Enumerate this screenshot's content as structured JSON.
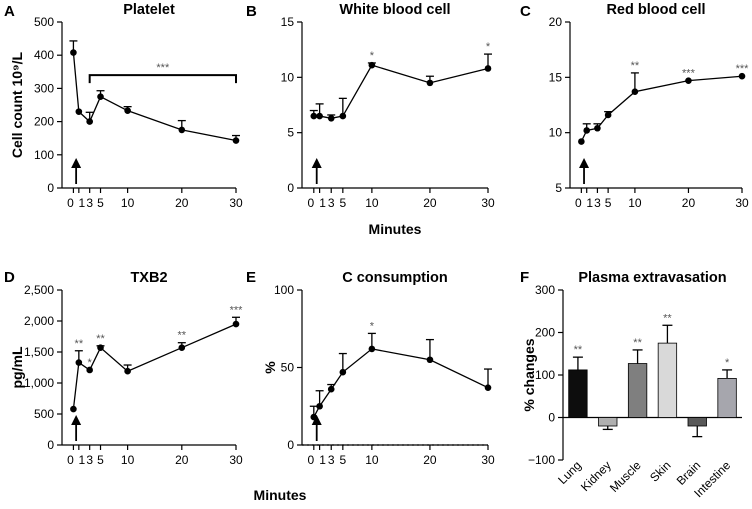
{
  "xlabel_shared": "Minutes",
  "chart_data": [
    {
      "letter": "A",
      "type": "line",
      "title": "Platelet",
      "ylabel": "Cell count 10⁹/L",
      "ylim": [
        0,
        500
      ],
      "yticks": [
        "0",
        "100",
        "200",
        "300",
        "400",
        "500"
      ],
      "xticks": [
        "0",
        "1",
        "3",
        "5",
        "10",
        "20",
        "30"
      ],
      "xlim": [
        -1,
        30
      ],
      "x": [
        0,
        1,
        3,
        5,
        10,
        20,
        30
      ],
      "values": [
        408,
        230,
        200,
        275,
        233,
        175,
        143
      ],
      "errors": [
        35,
        0,
        28,
        18,
        12,
        28,
        15
      ],
      "sig": [
        "",
        "",
        "",
        "",
        "",
        "",
        ""
      ],
      "bracket": {
        "x1": 3,
        "x2": 30,
        "y": 340,
        "label": "***"
      },
      "arrow": true
    },
    {
      "letter": "B",
      "type": "line",
      "title": "White blood cell",
      "ylabel": "",
      "ylim": [
        0,
        15
      ],
      "yticks": [
        "0",
        "5",
        "10",
        "15"
      ],
      "xticks": [
        "0",
        "1",
        "3",
        "5",
        "10",
        "20",
        "30"
      ],
      "xlim": [
        -1,
        30
      ],
      "x": [
        0,
        1,
        3,
        5,
        10,
        20,
        30
      ],
      "values": [
        6.5,
        6.5,
        6.3,
        6.5,
        11.1,
        9.5,
        10.8
      ],
      "errors": [
        0.5,
        1.1,
        0.3,
        1.6,
        0.2,
        0.6,
        1.3
      ],
      "sig": [
        "",
        "",
        "",
        "",
        "*",
        "",
        "*"
      ],
      "arrow": true
    },
    {
      "letter": "C",
      "type": "line",
      "title": "Red blood cell",
      "ylabel": "",
      "ylim": [
        5,
        20
      ],
      "yticks": [
        "5",
        "10",
        "15",
        "20"
      ],
      "xticks": [
        "0",
        "1",
        "3",
        "5",
        "10",
        "20",
        "30"
      ],
      "xlim": [
        -1,
        30
      ],
      "x": [
        0,
        1,
        3,
        5,
        10,
        20,
        30
      ],
      "values": [
        9.2,
        10.2,
        10.4,
        11.6,
        13.7,
        14.7,
        15.1
      ],
      "errors": [
        0,
        0.6,
        0.4,
        0.3,
        1.7,
        0,
        0
      ],
      "sig": [
        "",
        "",
        "",
        "",
        "**",
        "***",
        "***"
      ],
      "arrow": true
    },
    {
      "letter": "D",
      "type": "line",
      "title": "TXB2",
      "ylabel": "pg/mL",
      "ylim": [
        0,
        2500
      ],
      "yticks": [
        "0",
        "500",
        "1,000",
        "1,500",
        "2,000",
        "2,500"
      ],
      "xticks": [
        "0",
        "1",
        "3",
        "5",
        "10",
        "20",
        "30"
      ],
      "xlim": [
        -1,
        30
      ],
      "x": [
        0,
        1,
        3,
        5,
        10,
        20,
        30
      ],
      "values": [
        580,
        1330,
        1210,
        1570,
        1190,
        1570,
        1950
      ],
      "errors": [
        0,
        190,
        0,
        30,
        100,
        80,
        110
      ],
      "sig": [
        "",
        "**",
        "*",
        "**",
        "",
        "**",
        "***"
      ],
      "arrow": true
    },
    {
      "letter": "E",
      "type": "line",
      "title": "C consumption",
      "ylabel": "%",
      "ylim": [
        0,
        100
      ],
      "yticks": [
        "0",
        "50",
        "100"
      ],
      "xticks": [
        "0",
        "1",
        "3",
        "5",
        "10",
        "20",
        "30"
      ],
      "xlim": [
        -1,
        30
      ],
      "x": [
        0,
        1,
        3,
        5,
        10,
        20,
        30
      ],
      "values": [
        18,
        25,
        36,
        47,
        62,
        55,
        37
      ],
      "errors": [
        7,
        10,
        3,
        12,
        10,
        13,
        12
      ],
      "sig": [
        "",
        "",
        "",
        "",
        "*",
        "",
        ""
      ],
      "dotted_zero": true,
      "arrow": true
    },
    {
      "letter": "F",
      "type": "bar",
      "title": "Plasma extravasation",
      "ylabel": "% changes",
      "ylim": [
        -100,
        300
      ],
      "yticks": [
        "−100",
        "0",
        "100",
        "200",
        "300"
      ],
      "categories": [
        "Lung",
        "Kidney",
        "Muscle",
        "Skin",
        "Brain",
        "Intestine"
      ],
      "values": [
        112,
        -20,
        127,
        175,
        -20,
        92
      ],
      "errors": [
        30,
        8,
        32,
        42,
        25,
        20
      ],
      "colors": [
        "#0d0d0d",
        "#b0b0b0",
        "#7f7f7f",
        "#d9d9d9",
        "#595959",
        "#a6a6ad"
      ],
      "sig": [
        "**",
        "",
        "**",
        "**",
        "",
        "*"
      ]
    }
  ]
}
